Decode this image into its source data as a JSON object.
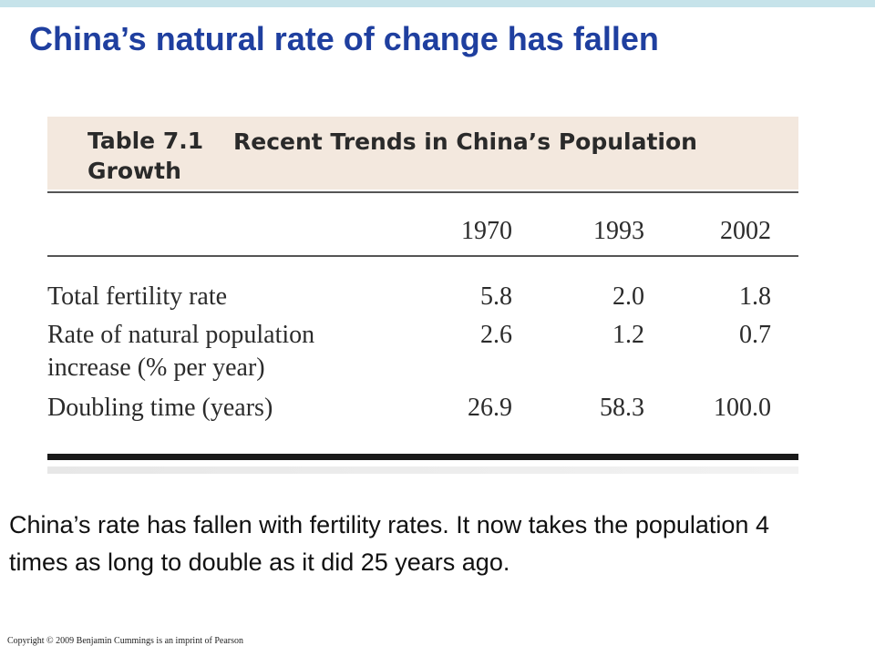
{
  "slide": {
    "title": "China’s natural rate of change has fallen",
    "body_text": "China’s rate has fallen with fertility rates.  It now takes the population 4 times as long to double as it did 25 years ago.",
    "copyright": "Copyright © 2009 Benjamin Cummings is an imprint of Pearson"
  },
  "table": {
    "number": "Table 7.1",
    "title": "Recent Trends in China’s Population Growth",
    "columns": [
      "1970",
      "1993",
      "2002"
    ],
    "rows": [
      {
        "label_lines": [
          "Total fertility rate"
        ],
        "values": [
          "5.8",
          "2.0",
          "1.8"
        ]
      },
      {
        "label_lines": [
          "Rate of natural population",
          "increase (% per year)"
        ],
        "values": [
          "2.6",
          "1.2",
          "0.7"
        ]
      },
      {
        "label_lines": [
          "Doubling time (years)"
        ],
        "values": [
          "26.9",
          "58.3",
          "100.0"
        ]
      }
    ]
  },
  "colors": {
    "title": "#1f3f9f",
    "caption_band": "#f3e8de",
    "top_bar": "#c6e3ea"
  }
}
